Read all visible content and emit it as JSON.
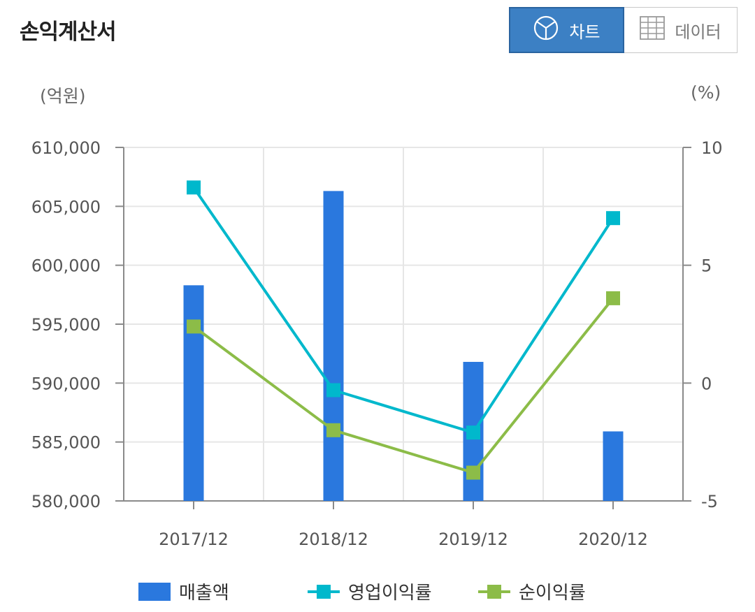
{
  "title": "손익계산서",
  "toggle": {
    "chart_label": "차트",
    "data_label": "데이터",
    "chart_icon": "pie-chart-icon",
    "data_icon": "table-icon"
  },
  "units": {
    "left": "(억원)",
    "right": "(%)"
  },
  "colors": {
    "bar": "#2a78de",
    "op_margin": "#00b8cc",
    "net_margin": "#8cbc48",
    "active_button": "#3c80c4"
  },
  "chart_data": {
    "type": "bar",
    "categories": [
      "2017/12",
      "2018/12",
      "2019/12",
      "2020/12"
    ],
    "series": [
      {
        "name": "매출액",
        "type": "bar",
        "axis": "left",
        "values": [
          598300,
          606300,
          591800,
          585900
        ]
      },
      {
        "name": "영업이익률",
        "type": "line",
        "axis": "right",
        "values": [
          8.3,
          -0.3,
          -2.1,
          7.0
        ]
      },
      {
        "name": "순이익률",
        "type": "line",
        "axis": "right",
        "values": [
          2.4,
          -2.0,
          -3.8,
          3.6
        ]
      }
    ],
    "y_left": {
      "min": 580000,
      "max": 610000,
      "ticks": [
        "580,000",
        "585,000",
        "590,000",
        "595,000",
        "600,000",
        "605,000",
        "610,000"
      ]
    },
    "y_right": {
      "min": -5,
      "max": 10,
      "ticks": [
        "-5",
        "0",
        "5",
        "10"
      ]
    },
    "grid": true,
    "legend_position": "bottom"
  }
}
